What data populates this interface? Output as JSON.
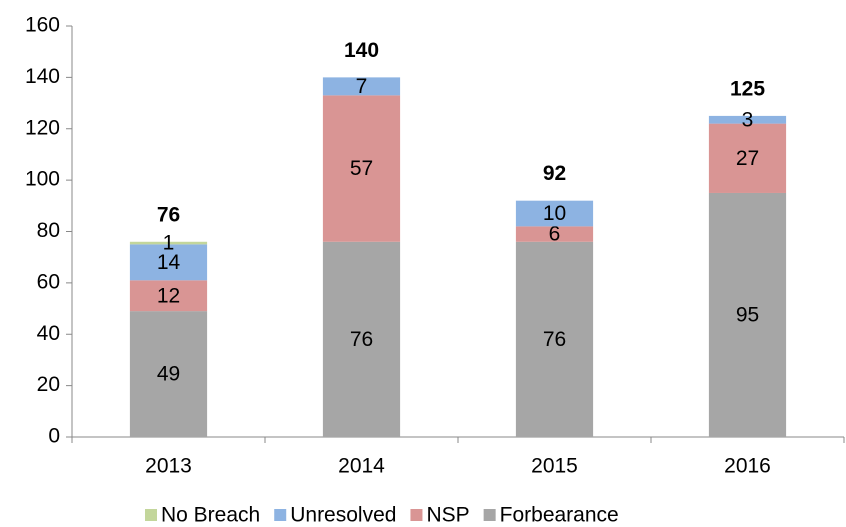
{
  "chart_data": {
    "type": "stacked-bar",
    "categories": [
      "2013",
      "2014",
      "2015",
      "2016"
    ],
    "series": [
      {
        "name": "No Breach",
        "color": "#c3d69b",
        "values": [
          1,
          null,
          null,
          null
        ]
      },
      {
        "name": "Unresolved",
        "color": "#8db3e2",
        "values": [
          14,
          7,
          10,
          3
        ]
      },
      {
        "name": "NSP",
        "color": "#d99594",
        "values": [
          12,
          57,
          6,
          27
        ]
      },
      {
        "name": "Forbearance",
        "color": "#a6a6a6",
        "values": [
          49,
          76,
          76,
          95
        ]
      }
    ],
    "totals": [
      76,
      140,
      92,
      125
    ],
    "ylim": [
      0,
      160
    ],
    "yticks": [
      0,
      20,
      40,
      60,
      80,
      100,
      120,
      140,
      160
    ],
    "legend": "bottom"
  }
}
